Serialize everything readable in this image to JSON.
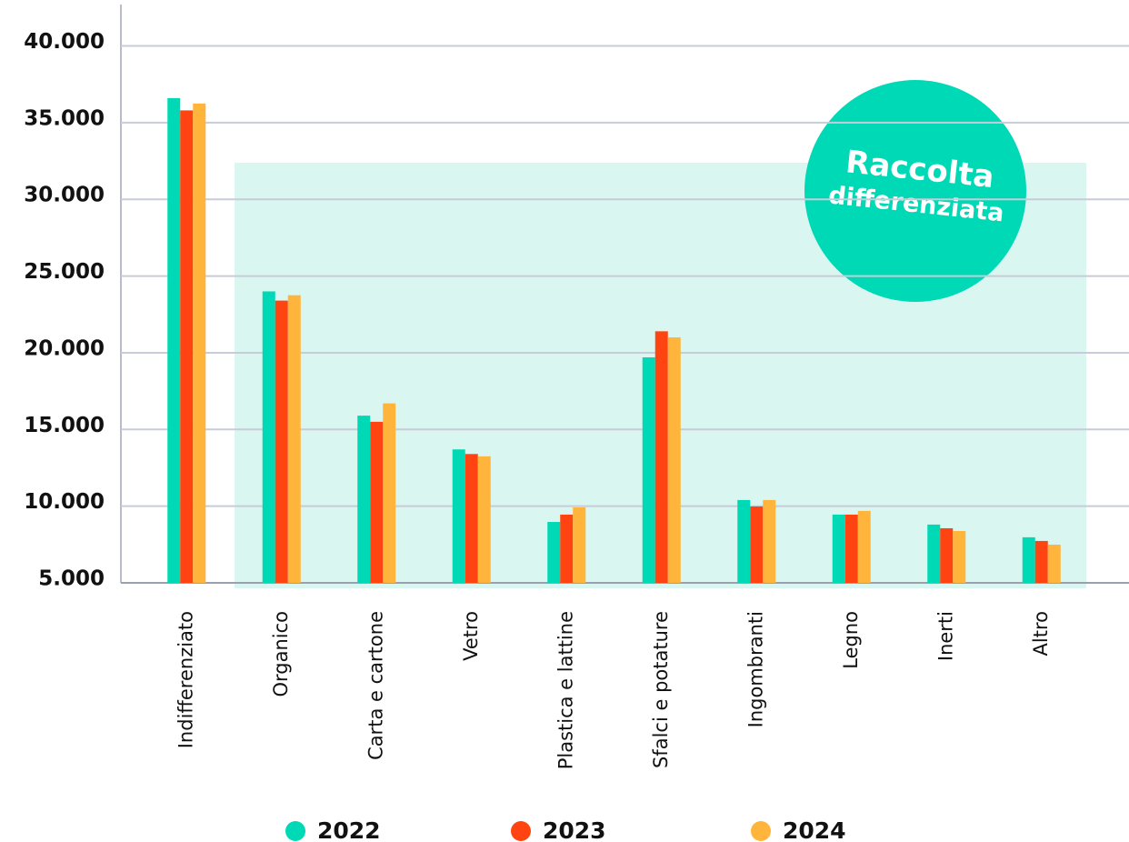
{
  "chart_data": {
    "type": "bar",
    "categories": [
      "Indifferenziato",
      "Organico",
      "Carta e cartone",
      "Vetro",
      "Plastica e lattine",
      "Sfalci e potature",
      "Ingombranti",
      "Legno",
      "Inerti",
      "Altro"
    ],
    "series": [
      {
        "name": "2022",
        "color": "#00d9b5",
        "values": [
          36600,
          24000,
          15900,
          13700,
          8970,
          19700,
          10400,
          9450,
          8800,
          7970
        ]
      },
      {
        "name": "2023",
        "color": "#ff4411",
        "values": [
          35800,
          23400,
          15500,
          13400,
          9450,
          21400,
          9980,
          9450,
          8560,
          7730
        ]
      },
      {
        "name": "2024",
        "color": "#ffb43c",
        "values": [
          36250,
          23750,
          16700,
          13250,
          9920,
          21000,
          10400,
          9690,
          8380,
          7490
        ]
      }
    ],
    "ylim": [
      5000,
      42700
    ],
    "yticks": [
      {
        "value": 5000,
        "label": "5.000"
      },
      {
        "value": 10000,
        "label": "10.000"
      },
      {
        "value": 15000,
        "label": "15.000"
      },
      {
        "value": 20000,
        "label": "20.000"
      },
      {
        "value": 25000,
        "label": "25.000"
      },
      {
        "value": 30000,
        "label": "30.000"
      },
      {
        "value": 35000,
        "label": "35.000"
      },
      {
        "value": 40000,
        "label": "40.000"
      }
    ],
    "grid": true,
    "annotation": [
      "Raccolta",
      "differenziata"
    ]
  }
}
